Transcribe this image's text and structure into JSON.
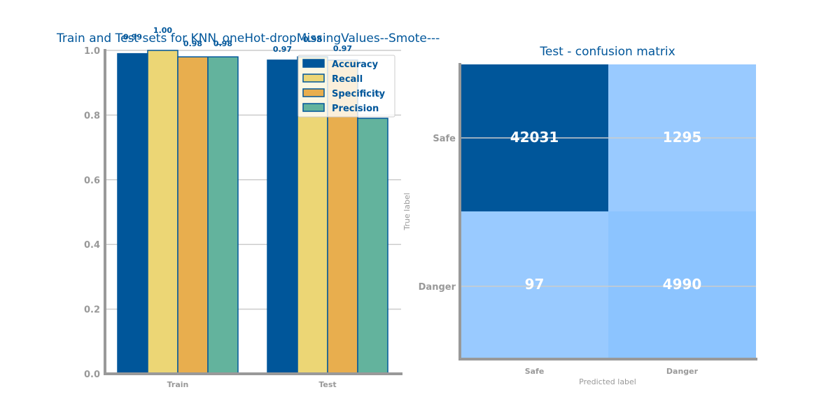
{
  "chart_data": [
    {
      "type": "bar",
      "title": "Train and Test sets for KNN_oneHot-dropMissingValues--Smote---",
      "categories": [
        "Train",
        "Test"
      ],
      "series": [
        {
          "name": "Accuracy",
          "values": [
            0.99,
            0.97
          ],
          "labels": [
            "0.99",
            "0.97"
          ]
        },
        {
          "name": "Recall",
          "values": [
            1.0,
            0.98
          ],
          "labels": [
            "1.00",
            "0.98"
          ]
        },
        {
          "name": "Specificity",
          "values": [
            0.98,
            0.97
          ],
          "labels": [
            "0.98",
            "0.97"
          ]
        },
        {
          "name": "Precision",
          "values": [
            0.98,
            0.79
          ],
          "labels": [
            "0.98",
            "0.79"
          ]
        }
      ],
      "ylim": [
        0,
        1.0
      ],
      "yticks": [
        "0.0",
        "0.2",
        "0.4",
        "0.6",
        "0.8",
        "1.0"
      ],
      "ytick_values": [
        0,
        0.2,
        0.4,
        0.6,
        0.8,
        1.0
      ],
      "grid": true,
      "legend_position": "top-right"
    },
    {
      "type": "heatmap",
      "title": "Test - confusion matrix",
      "xlabel": "Predicted label",
      "ylabel": "True label",
      "x_categories": [
        "Safe",
        "Danger"
      ],
      "y_categories": [
        "Safe",
        "Danger"
      ],
      "values": [
        [
          42031,
          1295
        ],
        [
          97,
          4990
        ]
      ]
    }
  ],
  "colors": {
    "accuracy": "#00569a",
    "recall": "#ecd675",
    "specificity": "#e8ae4e",
    "precision": "#63b39d",
    "cm_high": "#00569a",
    "cm_mid": "#99caff",
    "cm_low": "#8cc4ff",
    "axis": "#999999",
    "grid": "#cccccc"
  }
}
